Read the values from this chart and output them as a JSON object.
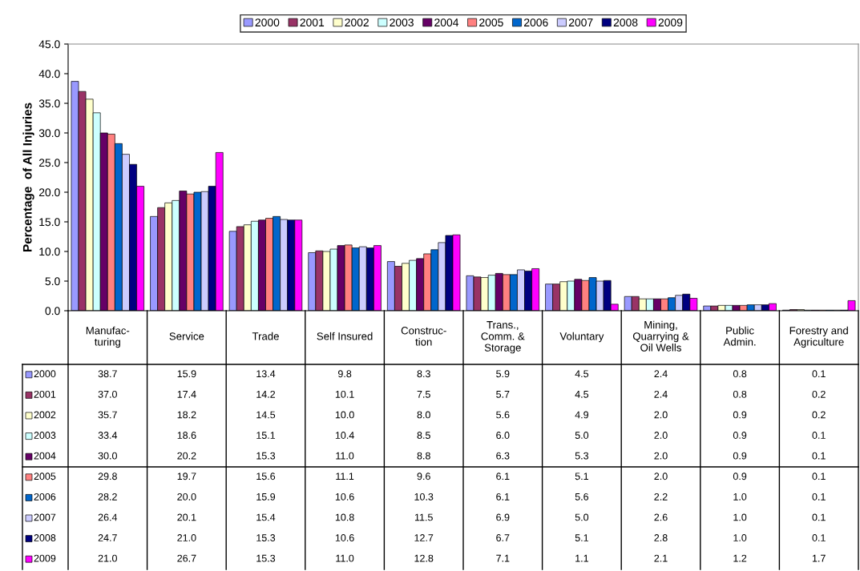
{
  "chart_data": {
    "type": "bar",
    "ylabel": "Percentage  of All Injuries",
    "categories": [
      "Manufac-\nturing",
      "Service",
      "Trade",
      "Self Insured",
      "Construc-\ntion",
      "Trans.,\nComm. &\nStorage",
      "Voluntary",
      "Mining,\nQuarrying &\nOil Wells",
      "Public\nAdmin.",
      "Forestry and\nAgriculture"
    ],
    "series": [
      {
        "name": "2000",
        "color": "#9999ff",
        "values": [
          38.7,
          15.9,
          13.4,
          9.8,
          8.3,
          5.9,
          4.5,
          2.4,
          0.8,
          0.1
        ],
        "value_labels": [
          "38.7",
          "15.9",
          "13.4",
          "9.8",
          "8.3",
          "5.9",
          "4.5",
          "2.4",
          "0.8",
          "0.1"
        ]
      },
      {
        "name": "2001",
        "color": "#993366",
        "values": [
          37.0,
          17.4,
          14.2,
          10.1,
          7.5,
          5.7,
          4.5,
          2.4,
          0.8,
          0.2
        ],
        "value_labels": [
          "37.0",
          "17.4",
          "14.2",
          "10.1",
          "7.5",
          "5.7",
          "4.5",
          "2.4",
          "0.8",
          "0.2"
        ]
      },
      {
        "name": "2002",
        "color": "#ffffcc",
        "values": [
          35.7,
          18.2,
          14.5,
          10.0,
          8.0,
          5.6,
          4.9,
          2.0,
          0.9,
          0.2
        ],
        "value_labels": [
          "35.7",
          "18.2",
          "14.5",
          "10.0",
          "8.0",
          "5.6",
          "4.9",
          "2.0",
          "0.9",
          "0.2"
        ]
      },
      {
        "name": "2003",
        "color": "#ccffff",
        "values": [
          33.4,
          18.6,
          15.1,
          10.4,
          8.5,
          6.0,
          5.0,
          2.0,
          0.9,
          0.1
        ],
        "value_labels": [
          "33.4",
          "18.6",
          "15.1",
          "10.4",
          "8.5",
          "6.0",
          "5.0",
          "2.0",
          "0.9",
          "0.1"
        ]
      },
      {
        "name": "2004",
        "color": "#660066",
        "values": [
          30.0,
          20.2,
          15.3,
          11.0,
          8.8,
          6.3,
          5.3,
          2.0,
          0.9,
          0.1
        ],
        "value_labels": [
          "30.0",
          "20.2",
          "15.3",
          "11.0",
          "8.8",
          "6.3",
          "5.3",
          "2.0",
          "0.9",
          "0.1"
        ]
      },
      {
        "name": "2005",
        "color": "#ff8080",
        "values": [
          29.8,
          19.7,
          15.6,
          11.1,
          9.6,
          6.1,
          5.1,
          2.0,
          0.9,
          0.1
        ],
        "value_labels": [
          "29.8",
          "19.7",
          "15.6",
          "11.1",
          "9.6",
          "6.1",
          "5.1",
          "2.0",
          "0.9",
          "0.1"
        ]
      },
      {
        "name": "2006",
        "color": "#0066cc",
        "values": [
          28.2,
          20.0,
          15.9,
          10.6,
          10.3,
          6.1,
          5.6,
          2.2,
          1.0,
          0.1
        ],
        "value_labels": [
          "28.2",
          "20.0",
          "15.9",
          "10.6",
          "10.3",
          "6.1",
          "5.6",
          "2.2",
          "1.0",
          "0.1"
        ]
      },
      {
        "name": "2007",
        "color": "#ccccff",
        "values": [
          26.4,
          20.1,
          15.4,
          10.8,
          11.5,
          6.9,
          5.0,
          2.6,
          1.0,
          0.1
        ],
        "value_labels": [
          "26.4",
          "20.1",
          "15.4",
          "10.8",
          "11.5",
          "6.9",
          "5.0",
          "2.6",
          "1.0",
          "0.1"
        ]
      },
      {
        "name": "2008",
        "color": "#000080",
        "values": [
          24.7,
          21.0,
          15.3,
          10.6,
          12.7,
          6.7,
          5.1,
          2.8,
          1.0,
          0.1
        ],
        "value_labels": [
          "24.7",
          "21.0",
          "15.3",
          "10.6",
          "12.7",
          "6.7",
          "5.1",
          "2.8",
          "1.0",
          "0.1"
        ]
      },
      {
        "name": "2009",
        "color": "#ff00ff",
        "values": [
          21.0,
          26.7,
          15.3,
          11.0,
          12.8,
          7.1,
          1.1,
          2.1,
          1.2,
          1.7
        ],
        "value_labels": [
          "21.0",
          "26.7",
          "15.3",
          "11.0",
          "12.8",
          "7.1",
          "1.1",
          "2.1",
          "1.2",
          "1.7"
        ]
      }
    ],
    "ylim": [
      0,
      45
    ],
    "yticks": [
      {
        "value": 0,
        "label": "0.0"
      },
      {
        "value": 5,
        "label": "5.0"
      },
      {
        "value": 10,
        "label": "10.0"
      },
      {
        "value": 15,
        "label": "15.0"
      },
      {
        "value": 20,
        "label": "20.0"
      },
      {
        "value": 25,
        "label": "25.0"
      },
      {
        "value": 30,
        "label": "30.0"
      },
      {
        "value": 35,
        "label": "35.0"
      },
      {
        "value": 40,
        "label": "40.0"
      },
      {
        "value": 45,
        "label": "45.0"
      }
    ],
    "grid": false,
    "legend": "top"
  }
}
